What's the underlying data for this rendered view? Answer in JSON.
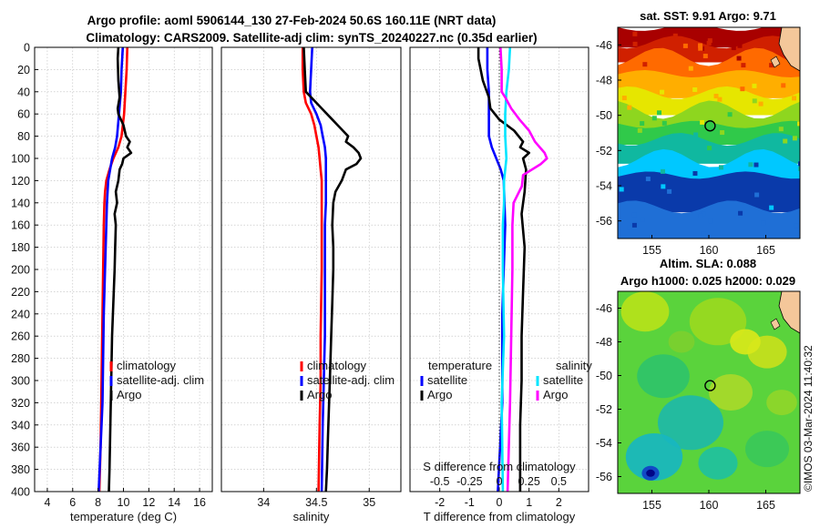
{
  "figure": {
    "title_line1": "Argo profile: aoml 5906144_130 27-Feb-2024 50.6S 160.11E (NRT data)",
    "title_line2": "Climatology: CARS2009. Satellite-adj clim: synTS_20240227.nc (0.35d earlier)",
    "copyright": "©IMOS 03-Mar-2024 11:40:32"
  },
  "colors": {
    "climatology": "#ff0000",
    "satellite": "#0000ff",
    "argo": "#000000",
    "sal_satellite": "#00e5ff",
    "sal_argo": "#ff00ff"
  },
  "chart_data": [
    {
      "type": "line",
      "id": "temperature",
      "xlabel": "temperature (deg C)",
      "ylabel": "",
      "xlim": [
        3,
        17
      ],
      "ylim": [
        0,
        400
      ],
      "yreversed": true,
      "xticks": [
        4,
        6,
        8,
        10,
        12,
        14,
        16
      ],
      "yticks": [
        0,
        20,
        40,
        60,
        80,
        100,
        120,
        140,
        160,
        180,
        200,
        220,
        240,
        260,
        280,
        300,
        320,
        340,
        360,
        380,
        400
      ],
      "grid": true,
      "legend": [
        "climatology",
        "satellite-adj. clim",
        "Argo"
      ],
      "series": [
        {
          "name": "climatology",
          "color_key": "climatology",
          "depth": [
            0,
            20,
            40,
            60,
            80,
            90,
            100,
            110,
            120,
            130,
            140,
            160,
            200,
            240,
            280,
            320,
            360,
            400
          ],
          "values": [
            10.3,
            10.25,
            10.15,
            10.05,
            9.85,
            9.6,
            9.2,
            8.9,
            8.65,
            8.55,
            8.5,
            8.45,
            8.4,
            8.35,
            8.3,
            8.25,
            8.2,
            8.1
          ]
        },
        {
          "name": "satellite-adj. clim",
          "color_key": "satellite",
          "depth": [
            0,
            20,
            40,
            60,
            80,
            90,
            100,
            110,
            120,
            140,
            160,
            200,
            240,
            280,
            320,
            360,
            400
          ],
          "values": [
            9.95,
            9.85,
            9.8,
            9.65,
            9.5,
            9.35,
            9.1,
            8.95,
            8.8,
            8.7,
            8.65,
            8.55,
            8.45,
            8.4,
            8.35,
            8.2,
            8.05
          ]
        },
        {
          "name": "Argo",
          "color_key": "argo",
          "depth": [
            0,
            10,
            30,
            45,
            55,
            60,
            70,
            80,
            85,
            90,
            95,
            100,
            105,
            110,
            120,
            130,
            140,
            150,
            160,
            180,
            200,
            230,
            260,
            290,
            320,
            350,
            380,
            400
          ],
          "values": [
            9.6,
            9.55,
            9.6,
            9.7,
            9.55,
            9.6,
            10.0,
            10.2,
            10.5,
            10.3,
            10.6,
            10.0,
            9.9,
            9.7,
            9.6,
            9.4,
            9.5,
            9.3,
            9.4,
            9.35,
            9.3,
            9.2,
            9.1,
            9.05,
            9.0,
            8.95,
            8.9,
            8.85
          ]
        }
      ]
    },
    {
      "type": "line",
      "id": "salinity",
      "xlabel": "salinity",
      "ylabel": "",
      "xlim": [
        33.6,
        35.3
      ],
      "ylim": [
        0,
        400
      ],
      "yreversed": true,
      "xticks": [
        34,
        34.5,
        35
      ],
      "xticklabels": [
        "34",
        "34.5",
        "35"
      ],
      "grid": true,
      "legend": [
        "climatology",
        "satellite-adj. clim",
        "Argo"
      ],
      "series": [
        {
          "name": "climatology",
          "color_key": "climatology",
          "depth": [
            0,
            20,
            40,
            50,
            60,
            70,
            80,
            90,
            100,
            110,
            120,
            140,
            160,
            200,
            260,
            300,
            340,
            400
          ],
          "values": [
            34.37,
            34.37,
            34.38,
            34.4,
            34.45,
            34.48,
            34.5,
            34.52,
            34.53,
            34.54,
            34.55,
            34.55,
            34.55,
            34.55,
            34.54,
            34.54,
            34.53,
            34.52
          ]
        },
        {
          "name": "satellite-adj. clim",
          "color_key": "satellite",
          "depth": [
            0,
            20,
            40,
            50,
            60,
            70,
            80,
            90,
            100,
            120,
            140,
            160,
            200,
            260,
            300,
            340,
            400
          ],
          "values": [
            34.46,
            34.45,
            34.44,
            34.45,
            34.5,
            34.54,
            34.56,
            34.58,
            34.59,
            34.59,
            34.59,
            34.58,
            34.58,
            34.58,
            34.57,
            34.56,
            34.55
          ]
        },
        {
          "name": "Argo",
          "color_key": "argo",
          "depth": [
            0,
            20,
            40,
            45,
            55,
            65,
            75,
            80,
            85,
            90,
            95,
            100,
            105,
            110,
            120,
            130,
            140,
            160,
            180,
            200,
            230,
            260,
            290,
            320,
            350,
            380,
            400
          ],
          "values": [
            34.38,
            34.39,
            34.4,
            34.45,
            34.55,
            34.65,
            34.75,
            34.8,
            34.78,
            34.85,
            34.9,
            34.92,
            34.88,
            34.78,
            34.74,
            34.68,
            34.66,
            34.65,
            34.66,
            34.66,
            34.65,
            34.64,
            34.63,
            34.62,
            34.61,
            34.6,
            34.59
          ]
        }
      ]
    },
    {
      "type": "line",
      "id": "difference",
      "xlabel": "T difference from climatology",
      "xlabel_top": "S difference from climatology",
      "xlim": [
        -3,
        3
      ],
      "ylim": [
        0,
        400
      ],
      "yreversed": true,
      "xticks": [
        -2,
        -1,
        0,
        1,
        2
      ],
      "s_xlim": [
        -0.75,
        0.75
      ],
      "s_xticks": [
        -0.5,
        -0.25,
        0,
        0.25,
        0.5
      ],
      "s_xticklabels": [
        "-0.5",
        "-0.25",
        "0",
        "0.25",
        "0.5"
      ],
      "grid": true,
      "legend_temperature": {
        "heading": "temperature",
        "items": [
          "satellite",
          "Argo"
        ]
      },
      "legend_salinity": {
        "heading": "salinity",
        "items": [
          "satellite",
          "Argo"
        ]
      },
      "series": [
        {
          "name": "temperature satellite",
          "color_key": "satellite",
          "depth": [
            0,
            20,
            40,
            60,
            80,
            90,
            100,
            110,
            120,
            160,
            240,
            320,
            400
          ],
          "values": [
            -0.4,
            -0.4,
            -0.35,
            -0.35,
            -0.35,
            -0.25,
            -0.1,
            0.05,
            0.15,
            0.2,
            0.1,
            0.1,
            -0.05
          ]
        },
        {
          "name": "temperature Argo",
          "color_key": "argo",
          "depth": [
            0,
            10,
            30,
            45,
            55,
            65,
            75,
            85,
            90,
            95,
            100,
            110,
            130,
            150,
            180,
            220,
            260,
            300,
            340,
            380,
            400
          ],
          "values": [
            -0.7,
            -0.7,
            -0.55,
            -0.35,
            -0.3,
            0.0,
            0.5,
            0.8,
            0.7,
            1.0,
            0.8,
            0.9,
            0.85,
            0.75,
            0.85,
            0.8,
            0.75,
            0.75,
            0.7,
            0.7,
            0.7
          ]
        },
        {
          "name": "salinity satellite",
          "color_key": "sal_satellite",
          "depth": [
            0,
            20,
            40,
            60,
            80,
            100,
            120,
            140,
            160,
            200,
            260,
            320,
            400
          ],
          "values": [
            0.09,
            0.08,
            0.06,
            0.05,
            0.05,
            0.06,
            0.04,
            0.04,
            0.03,
            0.03,
            0.04,
            0.02,
            0.03
          ]
        },
        {
          "name": "salinity Argo",
          "color_key": "sal_argo",
          "depth": [
            0,
            20,
            40,
            45,
            55,
            65,
            75,
            85,
            95,
            100,
            105,
            115,
            125,
            140,
            160,
            200,
            260,
            320,
            400
          ],
          "values": [
            0.01,
            0.02,
            0.02,
            0.05,
            0.1,
            0.17,
            0.25,
            0.3,
            0.38,
            0.4,
            0.35,
            0.2,
            0.19,
            0.12,
            0.11,
            0.11,
            0.1,
            0.09,
            0.07
          ]
        }
      ]
    },
    {
      "type": "heatmap",
      "id": "sst_map",
      "title": "sat. SST: 9.91 Argo: 9.71",
      "xticks": [
        155,
        160,
        165
      ],
      "yticks": [
        -46,
        -48,
        -50,
        -52,
        -54,
        -56
      ],
      "xlim": [
        152,
        168
      ],
      "ylim": [
        -57,
        -45
      ],
      "argo_location": {
        "lon": 160.11,
        "lat": -50.6
      }
    },
    {
      "type": "heatmap",
      "id": "sla_map",
      "title": "Altim. SLA: 0.088",
      "title2": "Argo h1000: 0.025 h2000: 0.029",
      "xticks": [
        155,
        160,
        165
      ],
      "yticks": [
        -46,
        -48,
        -50,
        -52,
        -54,
        -56
      ],
      "xlim": [
        152,
        168
      ],
      "ylim": [
        -57,
        -45
      ],
      "argo_location": {
        "lon": 160.11,
        "lat": -50.6
      }
    }
  ]
}
